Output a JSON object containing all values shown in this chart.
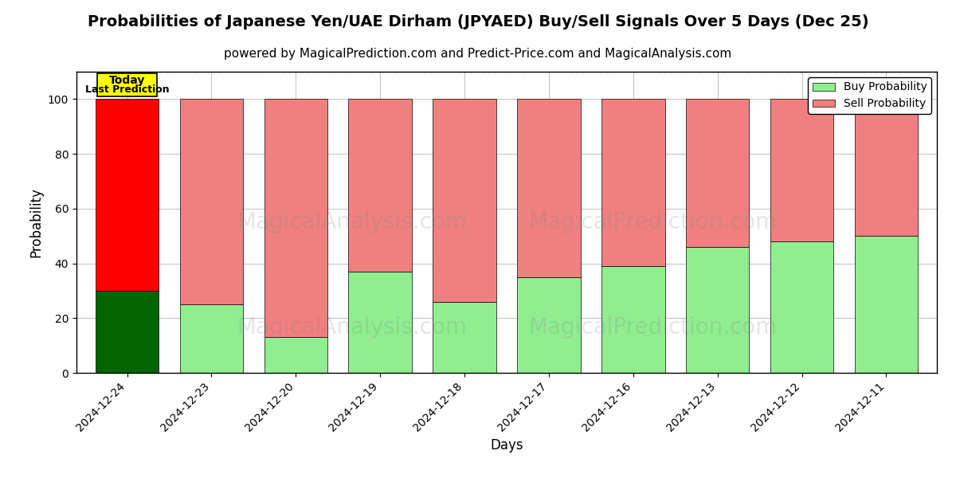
{
  "title": "Probabilities of Japanese Yen/UAE Dirham (JPYAED) Buy/Sell Signals Over 5 Days (Dec 25)",
  "subtitle": "powered by MagicalPrediction.com and Predict-Price.com and MagicalAnalysis.com",
  "xlabel": "Days",
  "ylabel": "Probability",
  "categories": [
    "2024-12-24",
    "2024-12-23",
    "2024-12-20",
    "2024-12-19",
    "2024-12-18",
    "2024-12-17",
    "2024-12-16",
    "2024-12-13",
    "2024-12-12",
    "2024-12-11"
  ],
  "buy_values": [
    30,
    25,
    13,
    37,
    26,
    35,
    39,
    46,
    48,
    50
  ],
  "sell_values": [
    70,
    75,
    87,
    63,
    74,
    65,
    61,
    54,
    52,
    50
  ],
  "buy_colors": [
    "#006400",
    "#90EE90",
    "#90EE90",
    "#90EE90",
    "#90EE90",
    "#90EE90",
    "#90EE90",
    "#90EE90",
    "#90EE90",
    "#90EE90"
  ],
  "sell_colors": [
    "#FF0000",
    "#F08080",
    "#F08080",
    "#F08080",
    "#F08080",
    "#F08080",
    "#F08080",
    "#F08080",
    "#F08080",
    "#F08080"
  ],
  "today_box_color": "#FFFF00",
  "today_text": [
    "Today",
    "Last Prediction"
  ],
  "watermark_texts": [
    "MagicalAnalysis.com",
    "MagicalPrediction.com"
  ],
  "ylim": [
    0,
    110
  ],
  "yticks": [
    0,
    20,
    40,
    60,
    80,
    100
  ],
  "dashed_line_y": 110,
  "legend_buy_color": "#90EE90",
  "legend_sell_color": "#F08080",
  "legend_buy_label": "Buy Probability",
  "legend_sell_label": "Sell Probability",
  "bar_edge_color": "#000000",
  "bar_linewidth": 0.5,
  "grid_color": "#808080",
  "grid_alpha": 0.5,
  "title_fontsize": 14,
  "subtitle_fontsize": 11,
  "axis_label_fontsize": 12,
  "tick_fontsize": 10
}
